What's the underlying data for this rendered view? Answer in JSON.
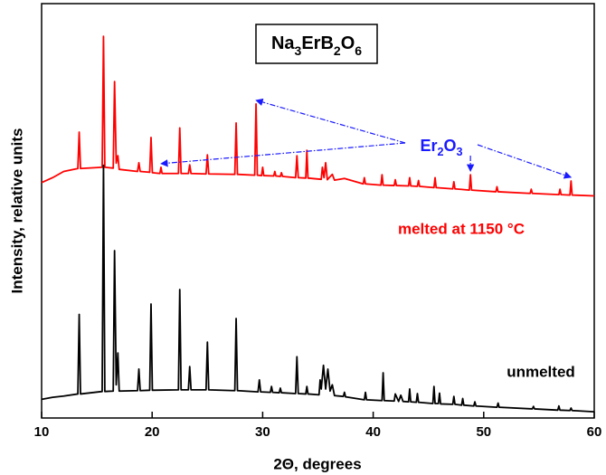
{
  "chart_data": {
    "type": "line",
    "title": "Na3ErB2O6",
    "x_label": "2Θ, degrees",
    "y_label": "Intensity, relative units",
    "xlim": [
      10,
      60
    ],
    "xticks": [
      10,
      20,
      30,
      40,
      50,
      60
    ],
    "ylim": [
      0,
      100
    ],
    "annotation": {
      "text": "Er2O3",
      "x": [
        20.8,
        29.4,
        48.8,
        57.9
      ]
    },
    "series": [
      {
        "name": "melted at 1150 °C",
        "color": "#ff0000",
        "x": [
          10,
          11,
          12,
          13.28,
          13.4,
          13.52,
          15.48,
          15.6,
          15.72,
          16.48,
          16.6,
          16.75,
          16.9,
          17.02,
          18.68,
          18.8,
          18.92,
          19.78,
          19.9,
          20.02,
          20.7,
          20.8,
          20.9,
          22.38,
          22.5,
          22.62,
          23.28,
          23.4,
          23.52,
          24.88,
          25,
          25.12,
          27.48,
          27.6,
          27.72,
          29.28,
          29.4,
          29.52,
          29.9,
          30,
          30.1,
          31,
          31.1,
          31.2,
          31.6,
          31.7,
          31.8,
          32.98,
          33.1,
          33.22,
          33.9,
          34,
          34.1,
          35.3,
          35.4,
          35.55,
          35.7,
          35.85,
          36.3,
          36.5,
          37.4,
          39.1,
          39.2,
          39.3,
          40.7,
          40.8,
          40.9,
          41.9,
          42,
          42.1,
          43.2,
          43.3,
          43.4,
          44,
          44.1,
          44.2,
          45.5,
          45.6,
          45.7,
          47.2,
          47.3,
          47.4,
          48.7,
          48.8,
          48.9,
          51.1,
          51.2,
          51.3,
          54.2,
          54.3,
          54.4,
          56.8,
          56.9,
          57,
          57.8,
          57.9,
          58,
          60
        ],
        "values": [
          56.8,
          58,
          59.5,
          60.2,
          69,
          60.2,
          60.5,
          92.1,
          60.5,
          60.3,
          81.2,
          61.5,
          63.3,
          60,
          59.5,
          61.6,
          59.5,
          59.3,
          67.7,
          59.2,
          59,
          60.5,
          59,
          59,
          70,
          59,
          59,
          61.1,
          59,
          58.9,
          63.5,
          58.9,
          58.8,
          71.2,
          58.8,
          58.6,
          75.8,
          58.6,
          58.5,
          60.5,
          58.5,
          58.4,
          59.5,
          58.4,
          58.3,
          59.2,
          58.3,
          58,
          63.3,
          58,
          57.9,
          64.6,
          57.9,
          57.6,
          60.5,
          58,
          61.6,
          57.5,
          58.8,
          57.4,
          57.8,
          56.5,
          58,
          56.5,
          56.2,
          58.7,
          56.2,
          56.1,
          57.5,
          56.1,
          56,
          58,
          56,
          55.9,
          57.3,
          55.9,
          55.6,
          58,
          55.6,
          55.3,
          57,
          55.3,
          55,
          58.7,
          55,
          54.6,
          55.8,
          54.6,
          54.2,
          55.2,
          54.2,
          53.9,
          55.2,
          53.9,
          53.8,
          57.2,
          53.8,
          53.6
        ]
      },
      {
        "name": "unmelted",
        "color": "#000000",
        "x": [
          10,
          11,
          12,
          13.28,
          13.4,
          13.52,
          15.48,
          15.6,
          15.72,
          16.48,
          16.6,
          16.75,
          16.9,
          17.02,
          18.68,
          18.8,
          18.92,
          19.78,
          19.9,
          20.02,
          22.38,
          22.5,
          22.62,
          23.28,
          23.4,
          23.52,
          24.88,
          25,
          25.12,
          27.48,
          27.6,
          27.72,
          29.58,
          29.7,
          29.82,
          30.7,
          30.8,
          30.9,
          31.5,
          31.6,
          31.7,
          32.98,
          33.1,
          33.22,
          33.9,
          34,
          34.1,
          35.1,
          35.2,
          35.3,
          35.5,
          35.7,
          35.9,
          36.1,
          36.3,
          36.5,
          37.3,
          37.4,
          37.5,
          39.2,
          39.3,
          39.4,
          40.8,
          40.9,
          41,
          41.9,
          42,
          42.3,
          42.5,
          42.7,
          43.2,
          43.3,
          43.4,
          43.9,
          44,
          44.1,
          45.4,
          45.5,
          45.6,
          45.9,
          46,
          46.1,
          47.2,
          47.3,
          47.4,
          48,
          48.1,
          48.2,
          49.1,
          49.2,
          49.3,
          51.2,
          51.3,
          51.4,
          54.4,
          54.5,
          54.6,
          56.7,
          56.8,
          56.9,
          57.8,
          57.9,
          58,
          60
        ],
        "values": [
          4.5,
          5,
          5.3,
          5.8,
          25,
          5.8,
          6.4,
          61,
          6.4,
          6.5,
          40.4,
          8,
          15.7,
          6.5,
          6.6,
          11.8,
          6.6,
          6.7,
          27.5,
          6.7,
          6.8,
          31,
          6.8,
          6.8,
          12.4,
          6.8,
          6.8,
          18.3,
          6.8,
          6.6,
          24,
          6.6,
          6.3,
          9.2,
          6.3,
          6.2,
          7.6,
          6.2,
          6.1,
          7.2,
          6.1,
          5.9,
          14.8,
          5.9,
          5.8,
          7.6,
          5.8,
          5.6,
          9.2,
          7,
          12.7,
          7,
          11.8,
          6.5,
          8,
          5.4,
          5.2,
          6.2,
          5.1,
          4.4,
          6.2,
          4.4,
          4.2,
          10.9,
          4.2,
          4.1,
          5.8,
          4,
          5.5,
          4,
          3.9,
          7,
          3.9,
          3.8,
          5.9,
          3.8,
          3.5,
          7.6,
          3.5,
          3.5,
          6,
          3.4,
          3.3,
          5.2,
          3.3,
          3.1,
          4.7,
          3.1,
          2.9,
          3.9,
          2.9,
          2.6,
          3.6,
          2.6,
          2.2,
          2.8,
          2.2,
          1.9,
          2.9,
          1.9,
          1.8,
          2.4,
          1.8,
          1.5
        ]
      }
    ]
  }
}
